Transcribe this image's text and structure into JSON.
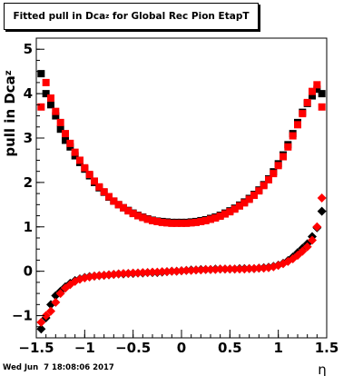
{
  "chart_data": {
    "type": "scatter",
    "title": "Fitted pull in Dca",
    "title_subscript": "z",
    "title_suffix": " for Global Rec Pion EtapT",
    "xlabel": "η",
    "ylabel": "pull in Dca",
    "ylabel_subscript": "z",
    "xlim": [
      -1.5,
      1.5
    ],
    "ylim": [
      -1.5,
      5.25
    ],
    "x_ticks": [
      "−1.5",
      "−1",
      "−0.5",
      "0",
      "0.5",
      "1",
      "1.5"
    ],
    "y_ticks": [
      "−1",
      "0",
      "1",
      "2",
      "3",
      "4",
      "5"
    ],
    "grid": false,
    "series": [
      {
        "group": "sigma",
        "marker": "square",
        "color": "#000000",
        "x": [
          -1.45,
          -1.4,
          -1.35,
          -1.3,
          -1.25,
          -1.2,
          -1.15,
          -1.1,
          -1.05,
          -1.0,
          -0.95,
          -0.9,
          -0.85,
          -0.8,
          -0.75,
          -0.7,
          -0.65,
          -0.6,
          -0.55,
          -0.5,
          -0.45,
          -0.4,
          -0.35,
          -0.3,
          -0.25,
          -0.2,
          -0.15,
          -0.1,
          -0.05,
          0.0,
          0.05,
          0.1,
          0.15,
          0.2,
          0.25,
          0.3,
          0.35,
          0.4,
          0.45,
          0.5,
          0.55,
          0.6,
          0.65,
          0.7,
          0.75,
          0.8,
          0.85,
          0.9,
          0.95,
          1.0,
          1.05,
          1.1,
          1.15,
          1.2,
          1.25,
          1.3,
          1.35,
          1.4,
          1.45
        ],
        "y": [
          4.45,
          4.0,
          3.75,
          3.5,
          3.2,
          2.95,
          2.8,
          2.6,
          2.45,
          2.3,
          2.15,
          2.0,
          1.88,
          1.78,
          1.67,
          1.58,
          1.5,
          1.43,
          1.37,
          1.31,
          1.26,
          1.22,
          1.18,
          1.15,
          1.13,
          1.12,
          1.11,
          1.1,
          1.1,
          1.1,
          1.1,
          1.11,
          1.12,
          1.14,
          1.16,
          1.19,
          1.22,
          1.26,
          1.31,
          1.36,
          1.42,
          1.49,
          1.56,
          1.64,
          1.73,
          1.83,
          1.95,
          2.08,
          2.24,
          2.42,
          2.62,
          2.85,
          3.1,
          3.35,
          3.58,
          3.78,
          3.95,
          4.1,
          4.0
        ]
      },
      {
        "group": "sigma",
        "marker": "square",
        "color": "#ff0000",
        "x": [
          -1.45,
          -1.4,
          -1.35,
          -1.3,
          -1.25,
          -1.2,
          -1.15,
          -1.1,
          -1.05,
          -1.0,
          -0.95,
          -0.9,
          -0.85,
          -0.8,
          -0.75,
          -0.7,
          -0.65,
          -0.6,
          -0.55,
          -0.5,
          -0.45,
          -0.4,
          -0.35,
          -0.3,
          -0.25,
          -0.2,
          -0.15,
          -0.1,
          -0.05,
          0.0,
          0.05,
          0.1,
          0.15,
          0.2,
          0.25,
          0.3,
          0.35,
          0.4,
          0.45,
          0.5,
          0.55,
          0.6,
          0.65,
          0.7,
          0.75,
          0.8,
          0.85,
          0.9,
          0.95,
          1.0,
          1.05,
          1.1,
          1.15,
          1.2,
          1.25,
          1.3,
          1.35,
          1.4,
          1.45
        ],
        "y": [
          3.7,
          4.25,
          3.9,
          3.6,
          3.35,
          3.1,
          2.88,
          2.68,
          2.5,
          2.33,
          2.18,
          2.03,
          1.9,
          1.79,
          1.68,
          1.58,
          1.5,
          1.43,
          1.36,
          1.3,
          1.25,
          1.21,
          1.17,
          1.14,
          1.12,
          1.1,
          1.09,
          1.08,
          1.08,
          1.08,
          1.08,
          1.09,
          1.1,
          1.12,
          1.14,
          1.17,
          1.2,
          1.24,
          1.29,
          1.34,
          1.4,
          1.47,
          1.54,
          1.62,
          1.71,
          1.81,
          1.93,
          2.06,
          2.2,
          2.38,
          2.58,
          2.8,
          3.05,
          3.3,
          3.55,
          3.8,
          4.05,
          4.2,
          3.7
        ]
      },
      {
        "group": "mean",
        "marker": "diamond",
        "color": "#000000",
        "x": [
          -1.45,
          -1.4,
          -1.35,
          -1.3,
          -1.25,
          -1.2,
          -1.15,
          -1.1,
          -1.05,
          -1.0,
          -0.95,
          -0.9,
          -0.85,
          -0.8,
          -0.75,
          -0.7,
          -0.65,
          -0.6,
          -0.55,
          -0.5,
          -0.45,
          -0.4,
          -0.35,
          -0.3,
          -0.25,
          -0.2,
          -0.15,
          -0.1,
          -0.05,
          0.0,
          0.05,
          0.1,
          0.15,
          0.2,
          0.25,
          0.3,
          0.35,
          0.4,
          0.45,
          0.5,
          0.55,
          0.6,
          0.65,
          0.7,
          0.75,
          0.8,
          0.85,
          0.9,
          0.95,
          1.0,
          1.05,
          1.1,
          1.15,
          1.2,
          1.25,
          1.3,
          1.35,
          1.4,
          1.45
        ],
        "y": [
          -1.3,
          -1.05,
          -0.75,
          -0.55,
          -0.45,
          -0.35,
          -0.27,
          -0.21,
          -0.17,
          -0.14,
          -0.12,
          -0.11,
          -0.1,
          -0.09,
          -0.08,
          -0.07,
          -0.06,
          -0.06,
          -0.05,
          -0.05,
          -0.04,
          -0.04,
          -0.03,
          -0.03,
          -0.03,
          -0.02,
          -0.01,
          0.0,
          0.0,
          0.01,
          0.02,
          0.03,
          0.03,
          0.04,
          0.04,
          0.04,
          0.05,
          0.05,
          0.05,
          0.05,
          0.05,
          0.06,
          0.06,
          0.06,
          0.06,
          0.07,
          0.08,
          0.09,
          0.11,
          0.14,
          0.18,
          0.24,
          0.32,
          0.42,
          0.52,
          0.62,
          0.78,
          0.98,
          1.35
        ]
      },
      {
        "group": "mean",
        "marker": "diamond",
        "color": "#ff0000",
        "x": [
          -1.45,
          -1.4,
          -1.35,
          -1.3,
          -1.25,
          -1.2,
          -1.15,
          -1.1,
          -1.05,
          -1.0,
          -0.95,
          -0.9,
          -0.85,
          -0.8,
          -0.75,
          -0.7,
          -0.65,
          -0.6,
          -0.55,
          -0.5,
          -0.45,
          -0.4,
          -0.35,
          -0.3,
          -0.25,
          -0.2,
          -0.15,
          -0.1,
          -0.05,
          0.0,
          0.05,
          0.1,
          0.15,
          0.2,
          0.25,
          0.3,
          0.35,
          0.4,
          0.45,
          0.5,
          0.55,
          0.6,
          0.65,
          0.7,
          0.75,
          0.8,
          0.85,
          0.9,
          0.95,
          1.0,
          1.05,
          1.1,
          1.15,
          1.2,
          1.25,
          1.3,
          1.35,
          1.4,
          1.45
        ],
        "y": [
          -1.15,
          -1.0,
          -0.9,
          -0.7,
          -0.5,
          -0.38,
          -0.3,
          -0.23,
          -0.18,
          -0.15,
          -0.13,
          -0.11,
          -0.1,
          -0.09,
          -0.08,
          -0.07,
          -0.06,
          -0.05,
          -0.05,
          -0.04,
          -0.04,
          -0.03,
          -0.03,
          -0.02,
          -0.02,
          -0.01,
          -0.01,
          0.0,
          0.0,
          0.01,
          0.02,
          0.02,
          0.03,
          0.03,
          0.04,
          0.04,
          0.04,
          0.05,
          0.05,
          0.05,
          0.05,
          0.05,
          0.05,
          0.06,
          0.06,
          0.07,
          0.07,
          0.08,
          0.1,
          0.13,
          0.17,
          0.22,
          0.28,
          0.36,
          0.45,
          0.55,
          0.7,
          1.0,
          1.65
        ]
      }
    ]
  },
  "footer": {
    "timestamp": "Wed Jun  7 18:08:06 2017"
  }
}
